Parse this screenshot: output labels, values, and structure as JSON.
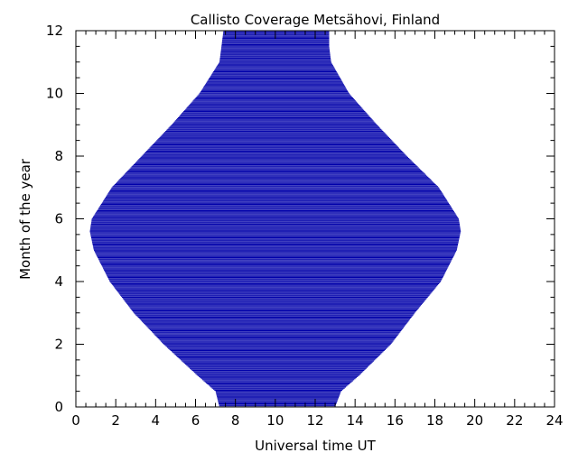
{
  "chart_data": {
    "type": "area",
    "title": "Callisto Coverage Metsähovi, Finland",
    "xlabel": "Universal time UT",
    "ylabel": "Month of the year",
    "xlim": [
      0,
      24
    ],
    "ylim": [
      0,
      12
    ],
    "x_major_ticks": [
      0,
      2,
      4,
      6,
      8,
      10,
      12,
      14,
      16,
      18,
      20,
      22,
      24
    ],
    "x_minor_step": 0.5,
    "y_major_ticks": [
      0,
      2,
      4,
      6,
      8,
      10,
      12
    ],
    "y_minor_step": 0.5,
    "fill_color": "#0000aa",
    "line_step_month": 0.0333,
    "coverage": [
      {
        "month": 0.0,
        "start": 7.2,
        "end": 13.0
      },
      {
        "month": 0.5,
        "start": 7.0,
        "end": 13.3
      },
      {
        "month": 1.0,
        "start": 6.1,
        "end": 14.2
      },
      {
        "month": 2.0,
        "start": 4.4,
        "end": 15.8
      },
      {
        "month": 3.0,
        "start": 2.9,
        "end": 17.0
      },
      {
        "month": 4.0,
        "start": 1.7,
        "end": 18.3
      },
      {
        "month": 5.0,
        "start": 0.9,
        "end": 19.1
      },
      {
        "month": 5.6,
        "start": 0.7,
        "end": 19.3
      },
      {
        "month": 6.0,
        "start": 0.8,
        "end": 19.2
      },
      {
        "month": 7.0,
        "start": 1.8,
        "end": 18.2
      },
      {
        "month": 8.0,
        "start": 3.3,
        "end": 16.6
      },
      {
        "month": 9.0,
        "start": 4.8,
        "end": 15.1
      },
      {
        "month": 10.0,
        "start": 6.2,
        "end": 13.7
      },
      {
        "month": 11.0,
        "start": 7.2,
        "end": 12.8
      },
      {
        "month": 11.5,
        "start": 7.3,
        "end": 12.7
      },
      {
        "month": 12.0,
        "start": 7.4,
        "end": 12.7
      }
    ]
  }
}
